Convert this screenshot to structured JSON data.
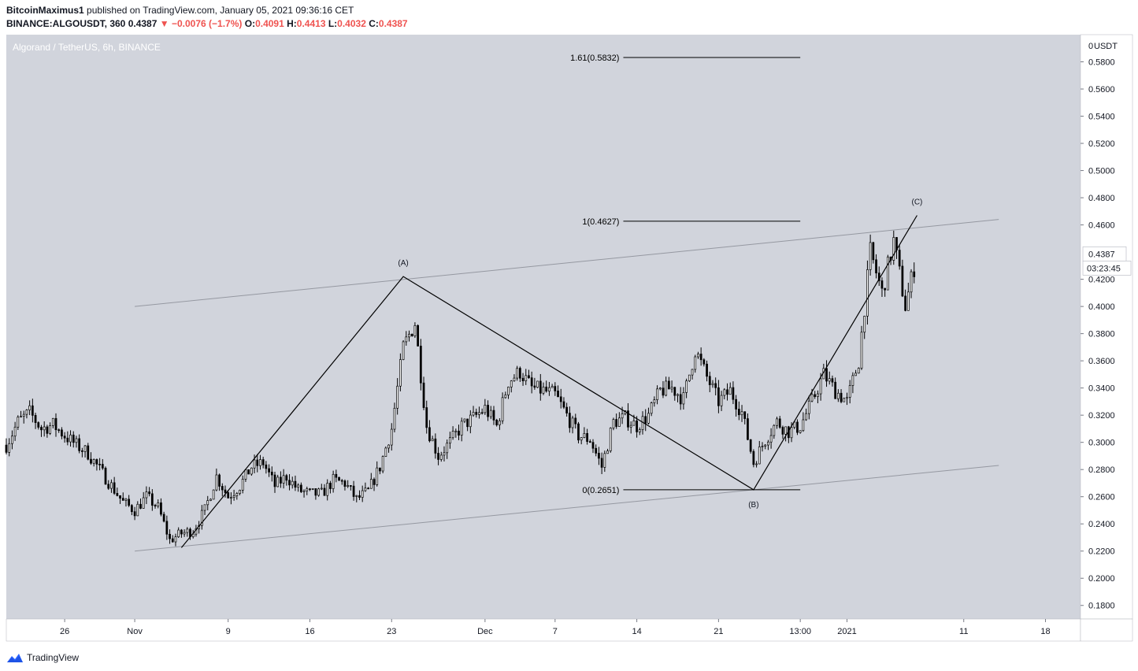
{
  "header": {
    "publisher": "BitcoinMaximus1",
    "published_text": "published on TradingView.com, January 05, 2021 09:36:16 CET",
    "symbol": "BINANCE:ALGOUSDT, 360",
    "last": "0.4387",
    "change": "−0.0076 (−1.7%)",
    "o_label": "O:",
    "o_value": "0.4091",
    "h_label": "H:",
    "h_value": "0.4413",
    "l_label": "L:",
    "l_value": "0.4032",
    "c_label": "C:",
    "c_value": "0.4387"
  },
  "footer": {
    "brand": "TradingView",
    "logo_icon": "tradingview-logo-icon"
  },
  "chart_data": {
    "type": "candlestick",
    "title": "Algorand / TetherUS, 6h, BINANCE",
    "currency_label": "USDT",
    "colors": {
      "background": "#d1d4dc",
      "candle": "#000000",
      "channel": "#9598a1",
      "wave": "#000000",
      "price_tag": "#ffffff"
    },
    "y_axis": {
      "ylim": [
        0.17,
        0.6
      ],
      "ticks": [
        "0.1800",
        "0.2000",
        "0.2200",
        "0.2400",
        "0.2600",
        "0.2800",
        "0.3000",
        "0.3200",
        "0.3400",
        "0.3600",
        "0.3800",
        "0.4000",
        "0.4200",
        "0.4600",
        "0.4800",
        "0.5000",
        "0.5200",
        "0.5400",
        "0.5600",
        "0.5800"
      ],
      "top_tick": "0"
    },
    "x_axis": {
      "start": "2020-10-21",
      "end": "2021-01-21",
      "ticks": [
        {
          "label": "26",
          "date": "2020-10-26"
        },
        {
          "label": "Nov",
          "date": "2020-11-01"
        },
        {
          "label": "9",
          "date": "2020-11-09"
        },
        {
          "label": "16",
          "date": "2020-11-16"
        },
        {
          "label": "23",
          "date": "2020-11-23"
        },
        {
          "label": "Dec",
          "date": "2020-12-01"
        },
        {
          "label": "7",
          "date": "2020-12-07"
        },
        {
          "label": "14",
          "date": "2020-12-14"
        },
        {
          "label": "21",
          "date": "2020-12-21"
        },
        {
          "label": "13:00",
          "date": "2020-12-28"
        },
        {
          "label": "2021",
          "date": "2021-01-01"
        },
        {
          "label": "11",
          "date": "2021-01-11"
        },
        {
          "label": "18",
          "date": "2021-01-18"
        }
      ]
    },
    "price_tag": {
      "value": 0.4387,
      "label": "0.4387",
      "countdown": "03:23:45"
    },
    "close_path": [
      [
        "2020-10-21",
        0.298
      ],
      [
        "2020-10-22",
        0.315
      ],
      [
        "2020-10-23",
        0.322
      ],
      [
        "2020-10-24",
        0.31
      ],
      [
        "2020-10-25",
        0.313
      ],
      [
        "2020-10-26",
        0.305
      ],
      [
        "2020-10-27",
        0.298
      ],
      [
        "2020-10-28",
        0.292
      ],
      [
        "2020-10-29",
        0.28
      ],
      [
        "2020-10-30",
        0.268
      ],
      [
        "2020-10-31",
        0.256
      ],
      [
        "2020-11-01",
        0.25
      ],
      [
        "2020-11-02",
        0.26
      ],
      [
        "2020-11-03",
        0.252
      ],
      [
        "2020-11-04",
        0.228
      ],
      [
        "2020-11-05",
        0.233
      ],
      [
        "2020-11-06",
        0.235
      ],
      [
        "2020-11-07",
        0.25
      ],
      [
        "2020-11-08",
        0.275
      ],
      [
        "2020-11-09",
        0.26
      ],
      [
        "2020-11-10",
        0.268
      ],
      [
        "2020-11-11",
        0.282
      ],
      [
        "2020-11-12",
        0.285
      ],
      [
        "2020-11-13",
        0.268
      ],
      [
        "2020-11-14",
        0.275
      ],
      [
        "2020-11-15",
        0.265
      ],
      [
        "2020-11-16",
        0.262
      ],
      [
        "2020-11-17",
        0.262
      ],
      [
        "2020-11-18",
        0.272
      ],
      [
        "2020-11-19",
        0.27
      ],
      [
        "2020-11-20",
        0.258
      ],
      [
        "2020-11-21",
        0.264
      ],
      [
        "2020-11-22",
        0.282
      ],
      [
        "2020-11-23",
        0.31
      ],
      [
        "2020-11-24",
        0.37
      ],
      [
        "2020-11-25",
        0.388
      ],
      [
        "2020-11-26",
        0.312
      ],
      [
        "2020-11-27",
        0.29
      ],
      [
        "2020-11-28",
        0.3
      ],
      [
        "2020-11-29",
        0.312
      ],
      [
        "2020-11-30",
        0.318
      ],
      [
        "2020-12-01",
        0.325
      ],
      [
        "2020-12-02",
        0.312
      ],
      [
        "2020-12-03",
        0.345
      ],
      [
        "2020-12-04",
        0.352
      ],
      [
        "2020-12-05",
        0.34
      ],
      [
        "2020-12-06",
        0.338
      ],
      [
        "2020-12-07",
        0.335
      ],
      [
        "2020-12-08",
        0.32
      ],
      [
        "2020-12-09",
        0.305
      ],
      [
        "2020-12-10",
        0.302
      ],
      [
        "2020-12-11",
        0.282
      ],
      [
        "2020-12-12",
        0.315
      ],
      [
        "2020-12-13",
        0.318
      ],
      [
        "2020-12-14",
        0.312
      ],
      [
        "2020-12-15",
        0.32
      ],
      [
        "2020-12-16",
        0.338
      ],
      [
        "2020-12-17",
        0.34
      ],
      [
        "2020-12-18",
        0.332
      ],
      [
        "2020-12-19",
        0.368
      ],
      [
        "2020-12-20",
        0.348
      ],
      [
        "2020-12-21",
        0.33
      ],
      [
        "2020-12-22",
        0.338
      ],
      [
        "2020-12-23",
        0.322
      ],
      [
        "2020-12-24",
        0.285
      ],
      [
        "2020-12-25",
        0.302
      ],
      [
        "2020-12-26",
        0.315
      ],
      [
        "2020-12-27",
        0.308
      ],
      [
        "2020-12-28",
        0.312
      ],
      [
        "2020-12-29",
        0.33
      ],
      [
        "2020-12-30",
        0.35
      ],
      [
        "2020-12-31",
        0.338
      ],
      [
        "2021-01-01",
        0.33
      ],
      [
        "2021-01-02",
        0.36
      ],
      [
        "2021-01-03",
        0.44
      ],
      [
        "2021-01-04",
        0.41
      ],
      [
        "2021-01-05",
        0.448
      ],
      [
        "2021-01-06",
        0.4
      ],
      [
        "2021-01-07",
        0.4387
      ]
    ],
    "wave_path": [
      [
        "2020-11-05",
        0.2225
      ],
      [
        "2020-11-24",
        0.422
      ],
      [
        "2020-12-24",
        0.2651
      ],
      [
        "2021-01-07",
        0.467
      ]
    ],
    "channel_lines": [
      {
        "from": [
          "2020-11-01",
          0.22
        ],
        "to": [
          "2021-01-14",
          0.283
        ]
      },
      {
        "from": [
          "2020-11-01",
          0.4
        ],
        "to": [
          "2021-01-14",
          0.464
        ]
      }
    ],
    "fib_levels": [
      {
        "label": "1.61(0.5832)",
        "value": 0.5832,
        "from": "2020-12-09",
        "to": "2020-12-28"
      },
      {
        "label": "1(0.4627)",
        "value": 0.4627,
        "from": "2020-12-09",
        "to": "2020-12-28"
      },
      {
        "label": "0(0.2651)",
        "value": 0.2651,
        "from": "2020-12-09",
        "to": "2020-12-28"
      }
    ],
    "wave_labels": [
      {
        "label": "(A)",
        "date": "2020-11-24",
        "value": 0.422,
        "position": "above"
      },
      {
        "label": "(B)",
        "date": "2020-12-24",
        "value": 0.2651,
        "position": "below"
      },
      {
        "label": "(C)",
        "date": "2021-01-07",
        "value": 0.467,
        "position": "above"
      }
    ]
  }
}
